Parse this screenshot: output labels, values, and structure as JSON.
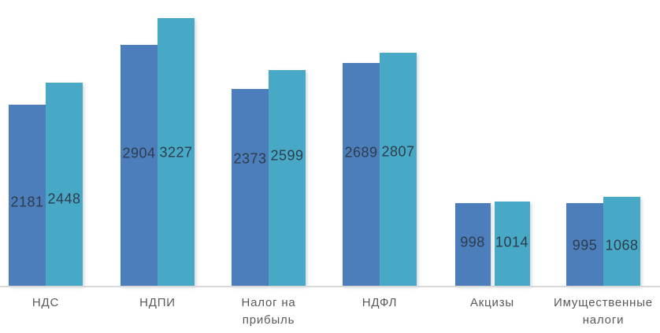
{
  "chart_data": {
    "type": "bar",
    "title": "",
    "categories": [
      "НДС",
      "НДПИ",
      "Налог на прибыль",
      "НДФЛ",
      "Акцизы",
      "Имущественные налоги"
    ],
    "category_lines": [
      [
        "НДС"
      ],
      [
        "НДПИ"
      ],
      [
        "Налог на",
        "прибыль"
      ],
      [
        "НДФЛ"
      ],
      [
        "Акцизы"
      ],
      [
        "Имущественные",
        "налоги"
      ]
    ],
    "series": [
      {
        "color": "#4c7ebb",
        "values": [
          2181,
          2904,
          2373,
          2689,
          998,
          995
        ]
      },
      {
        "color": "#47a9c6",
        "values": [
          2448,
          3227,
          2599,
          2807,
          1014,
          1068
        ]
      }
    ],
    "data_labels": true,
    "label_color": "#2e3c4c",
    "category_label_color": "#595959",
    "axis_line_color": "#d8d8d8",
    "background": "#ffffff",
    "legend": "none",
    "grid": "off"
  }
}
